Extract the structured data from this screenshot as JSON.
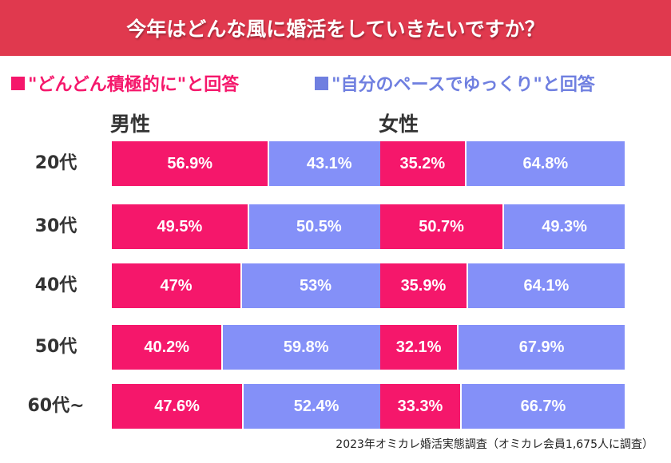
{
  "title": "今年はどんな風に婚活をしていきたいですか？",
  "footer": "2023年オミカレ婚活実態調査（オミカレ会員1,675人に調査）",
  "colors": {
    "title_bg": "#E0394E",
    "active": "#F5176B",
    "slow": "#8490F8",
    "slow_text": "#6F7FE0"
  },
  "chart_data": {
    "type": "bar",
    "stacked": true,
    "orientation": "horizontal",
    "categories": [
      "20代",
      "30代",
      "40代",
      "50代",
      "60代~"
    ],
    "legend": [
      {
        "label": "■\"どんどん積極的に\"と回答",
        "color": "#F5176B"
      },
      {
        "label": "■\"自分のペースでゆっくり\"と回答",
        "color": "#8490F8"
      }
    ],
    "panels": [
      {
        "title": "男性",
        "series": [
          {
            "name": "\"どんどん積極的に\"と回答",
            "values": [
              56.9,
              49.5,
              47,
              40.2,
              47.6
            ],
            "labels": [
              "56.9%",
              "49.5%",
              "47%",
              "40.2%",
              "47.6%"
            ]
          },
          {
            "name": "\"自分のペースでゆっくり\"と回答",
            "values": [
              43.1,
              50.5,
              53,
              59.8,
              52.4
            ],
            "labels": [
              "43.1%",
              "50.5%",
              "53%",
              "59.8%",
              "52.4%"
            ]
          }
        ]
      },
      {
        "title": "女性",
        "series": [
          {
            "name": "\"どんどん積極的に\"と回答",
            "values": [
              35.2,
              50.7,
              35.9,
              32.1,
              33.3
            ],
            "labels": [
              "35.2%",
              "50.7%",
              "35.9%",
              "32.1%",
              "33.3%"
            ]
          },
          {
            "name": "\"自分のペースでゆっくり\"と回答",
            "values": [
              64.8,
              49.3,
              64.1,
              67.9,
              66.7
            ],
            "labels": [
              "64.8%",
              "49.3%",
              "64.1%",
              "67.9%",
              "66.7%"
            ]
          }
        ]
      }
    ]
  }
}
